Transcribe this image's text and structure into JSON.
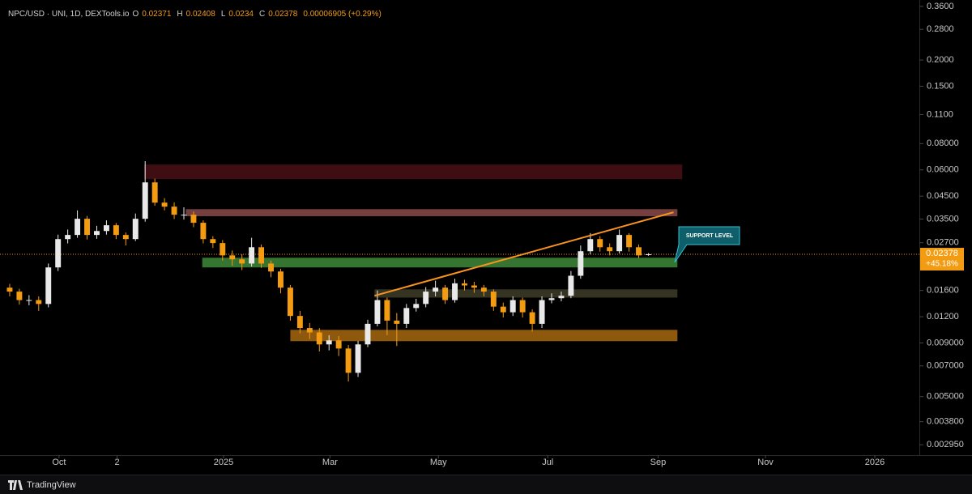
{
  "chart_data": {
    "type": "candlestick",
    "symbol": "NPC/USD · UNI, 1D, DEXTools.io",
    "ohlc_labels": [
      "O",
      "H",
      "L",
      "C"
    ],
    "change": "0.00006905 (+0.29%)",
    "price_change_label": "+45.18%",
    "annotation": "SUPPORT LEVEL",
    "footer": "TradingView",
    "log_scale": true,
    "up_color": "#e9e9e9",
    "down_color": "#f39c12",
    "xlim": [
      -1,
      94
    ],
    "xticks": [
      {
        "value": 5.1,
        "label": "Oct"
      },
      {
        "value": 11.1,
        "label": "2"
      },
      {
        "value": 22.1,
        "label": "2025"
      },
      {
        "value": 33.1,
        "label": "Mar"
      },
      {
        "value": 44.3,
        "label": "May"
      },
      {
        "value": 55.6,
        "label": "Jul"
      },
      {
        "value": 67.0,
        "label": "Sep"
      },
      {
        "value": 78.1,
        "label": "Nov"
      },
      {
        "value": 89.4,
        "label": "2026"
      }
    ],
    "ylim": [
      0.00268,
      0.386
    ],
    "yticks": [
      {
        "value": 0.36,
        "label": "0.3600"
      },
      {
        "value": 0.28,
        "label": "0.2800"
      },
      {
        "value": 0.2,
        "label": "0.2000"
      },
      {
        "value": 0.15,
        "label": "0.1500"
      },
      {
        "value": 0.11,
        "label": "0.1100"
      },
      {
        "value": 0.08,
        "label": "0.08000"
      },
      {
        "value": 0.06,
        "label": "0.06000"
      },
      {
        "value": 0.045,
        "label": "0.04500"
      },
      {
        "value": 0.035,
        "label": "0.03500"
      },
      {
        "value": 0.027,
        "label": "0.02700"
      },
      {
        "value": 0.016,
        "label": "0.01600"
      },
      {
        "value": 0.012,
        "label": "0.01200"
      },
      {
        "value": 0.009,
        "label": "0.009000"
      },
      {
        "value": 0.007,
        "label": "0.007000"
      },
      {
        "value": 0.005,
        "label": "0.005000"
      },
      {
        "value": 0.0038,
        "label": "0.003800"
      },
      {
        "value": 0.00295,
        "label": "0.002950"
      }
    ],
    "open": [
      0.0165,
      0.0158,
      0.0144,
      0.0144,
      0.0138,
      0.0206,
      0.0281,
      0.0294,
      0.0351,
      0.0294,
      0.0307,
      0.0327,
      0.0294,
      0.0281,
      0.0351,
      0.0523,
      0.0419,
      0.0401,
      0.0367,
      0.0367,
      0.0336,
      0.0281,
      0.0269,
      0.0235,
      0.0225,
      0.0215,
      0.0257,
      0.0215,
      0.0197,
      0.0165,
      0.0121,
      0.0106,
      0.0101,
      0.00886,
      0.00926,
      0.00847,
      0.00649,
      0.00886,
      0.0111,
      0.0144,
      0.0115,
      0.0111,
      0.0132,
      0.0138,
      0.0158,
      0.0165,
      0.0144,
      0.0173,
      0.0169,
      0.0165,
      0.0158,
      0.0134,
      0.0126,
      0.0144,
      0.0126,
      0.0111,
      0.0144,
      0.0147,
      0.0151,
      0.0188,
      0.0246,
      0.0281,
      0.0257,
      0.0246,
      0.0294,
      0.0257,
      0.02371
    ],
    "high": [
      0.0172,
      0.0163,
      0.0152,
      0.015,
      0.0215,
      0.0295,
      0.0312,
      0.0385,
      0.0362,
      0.0325,
      0.0345,
      0.0335,
      0.0302,
      0.0372,
      0.066,
      0.0545,
      0.044,
      0.042,
      0.0398,
      0.038,
      0.0345,
      0.029,
      0.0278,
      0.0248,
      0.0238,
      0.0285,
      0.0265,
      0.0222,
      0.0203,
      0.017,
      0.0128,
      0.0112,
      0.0106,
      0.0098,
      0.0097,
      0.0088,
      0.0092,
      0.0116,
      0.016,
      0.0148,
      0.0125,
      0.0138,
      0.0146,
      0.0166,
      0.0178,
      0.017,
      0.0182,
      0.018,
      0.0176,
      0.017,
      0.0162,
      0.014,
      0.015,
      0.0148,
      0.013,
      0.015,
      0.0155,
      0.0158,
      0.0198,
      0.0262,
      0.03,
      0.029,
      0.0268,
      0.0312,
      0.03,
      0.0265,
      0.02408
    ],
    "low": [
      0.015,
      0.0137,
      0.0136,
      0.0128,
      0.0133,
      0.0198,
      0.0268,
      0.0285,
      0.028,
      0.0282,
      0.0295,
      0.0281,
      0.0262,
      0.0275,
      0.034,
      0.0405,
      0.0385,
      0.035,
      0.0348,
      0.032,
      0.0268,
      0.0255,
      0.0222,
      0.021,
      0.02,
      0.0208,
      0.0205,
      0.0185,
      0.0155,
      0.0115,
      0.01,
      0.0094,
      0.0082,
      0.0083,
      0.0078,
      0.0059,
      0.0062,
      0.0086,
      0.0108,
      0.0098,
      0.0087,
      0.0106,
      0.0127,
      0.0133,
      0.015,
      0.0138,
      0.014,
      0.016,
      0.0156,
      0.015,
      0.0128,
      0.0119,
      0.0121,
      0.0119,
      0.0102,
      0.0106,
      0.0139,
      0.0142,
      0.0147,
      0.0182,
      0.0238,
      0.0245,
      0.0235,
      0.024,
      0.0245,
      0.0228,
      0.0234
    ],
    "close": [
      0.0158,
      0.0144,
      0.0144,
      0.0138,
      0.0206,
      0.0281,
      0.0294,
      0.0351,
      0.0294,
      0.0307,
      0.0327,
      0.0294,
      0.0281,
      0.0351,
      0.0523,
      0.0419,
      0.0401,
      0.0367,
      0.0367,
      0.0336,
      0.0281,
      0.0269,
      0.0235,
      0.0225,
      0.0215,
      0.0257,
      0.0215,
      0.0197,
      0.0165,
      0.0121,
      0.0106,
      0.0101,
      0.00886,
      0.00926,
      0.00847,
      0.00649,
      0.00886,
      0.0111,
      0.0144,
      0.0115,
      0.0111,
      0.0132,
      0.0138,
      0.0158,
      0.0165,
      0.0144,
      0.0173,
      0.0169,
      0.0165,
      0.0158,
      0.0134,
      0.0126,
      0.0144,
      0.0126,
      0.0111,
      0.0144,
      0.0147,
      0.0151,
      0.0188,
      0.0246,
      0.0281,
      0.0257,
      0.0246,
      0.0294,
      0.0257,
      0.0235,
      0.02378
    ],
    "zones": [
      {
        "from": 13.9,
        "to": 69.5,
        "low": 0.0542,
        "high": 0.0636,
        "color": "#4a1016"
      },
      {
        "from": 18.2,
        "to": 69.0,
        "low": 0.0361,
        "high": 0.039,
        "color": "#8a4a4a"
      },
      {
        "from": 19.9,
        "to": 69.0,
        "low": 0.0206,
        "high": 0.0229,
        "color": "#3e8a3a"
      },
      {
        "from": 37.7,
        "to": 69.0,
        "low": 0.0148,
        "high": 0.0162,
        "color": "#3e3c28"
      },
      {
        "from": 29.0,
        "to": 69.0,
        "low": 0.00918,
        "high": 0.01039,
        "color": "#a8690f"
      }
    ],
    "trendline": {
      "x": [
        37.7,
        68.6
      ],
      "y": [
        0.0151,
        0.0377
      ],
      "color": "#f7931e"
    }
  }
}
